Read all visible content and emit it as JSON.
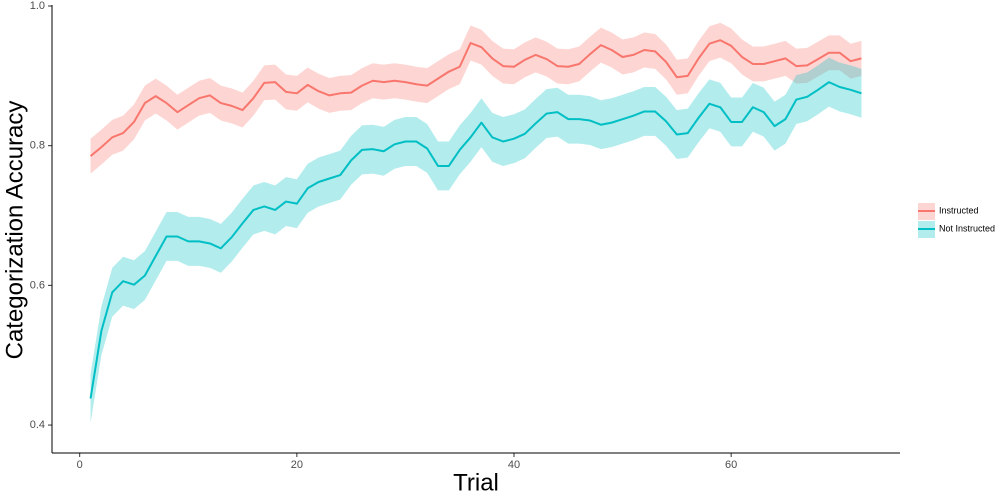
{
  "chart_data": {
    "type": "line",
    "xlabel": "Trial",
    "ylabel": "Categorization Accuracy",
    "x": [
      1,
      2,
      3,
      4,
      5,
      6,
      7,
      8,
      9,
      10,
      11,
      12,
      13,
      14,
      15,
      16,
      17,
      18,
      19,
      20,
      21,
      22,
      23,
      24,
      25,
      26,
      27,
      28,
      29,
      30,
      31,
      32,
      33,
      34,
      35,
      36,
      37,
      38,
      39,
      40,
      41,
      42,
      43,
      44,
      45,
      46,
      47,
      48,
      49,
      50,
      51,
      52,
      53,
      54,
      55,
      56,
      57,
      58,
      59,
      60,
      61,
      62,
      63,
      64,
      65,
      66,
      67,
      68,
      69,
      70,
      71,
      72
    ],
    "xlim": [
      -2.55,
      75.55
    ],
    "xticks": [
      0,
      20,
      40,
      60
    ],
    "ylim": [
      0.36,
      1.0
    ],
    "yticks": [
      0.4,
      0.6,
      0.8,
      {
        "value": 1.0,
        "label": "1.0"
      }
    ],
    "legend": "right",
    "grid": false,
    "series": [
      {
        "name": "Instructed",
        "color": "#F8766D",
        "ci": 0.025,
        "values": [
          0.785,
          0.798,
          0.812,
          0.818,
          0.834,
          0.861,
          0.871,
          0.861,
          0.848,
          0.858,
          0.868,
          0.872,
          0.861,
          0.857,
          0.851,
          0.868,
          0.89,
          0.891,
          0.877,
          0.875,
          0.887,
          0.878,
          0.872,
          0.875,
          0.876,
          0.886,
          0.893,
          0.891,
          0.893,
          0.891,
          0.888,
          0.886,
          0.896,
          0.906,
          0.913,
          0.947,
          0.941,
          0.925,
          0.914,
          0.913,
          0.923,
          0.93,
          0.924,
          0.914,
          0.913,
          0.917,
          0.931,
          0.944,
          0.937,
          0.927,
          0.93,
          0.937,
          0.935,
          0.92,
          0.898,
          0.9,
          0.925,
          0.946,
          0.951,
          0.943,
          0.927,
          0.917,
          0.917,
          0.921,
          0.925,
          0.914,
          0.915,
          0.924,
          0.933,
          0.933,
          0.921,
          0.925
        ]
      },
      {
        "name": "Not Instructed",
        "color": "#00BFC4",
        "ci": 0.035,
        "values": [
          0.438,
          0.535,
          0.59,
          0.606,
          0.601,
          0.614,
          0.642,
          0.67,
          0.67,
          0.663,
          0.663,
          0.66,
          0.653,
          0.669,
          0.689,
          0.708,
          0.713,
          0.708,
          0.72,
          0.717,
          0.739,
          0.748,
          0.753,
          0.758,
          0.779,
          0.794,
          0.795,
          0.792,
          0.802,
          0.806,
          0.806,
          0.796,
          0.771,
          0.771,
          0.794,
          0.812,
          0.833,
          0.812,
          0.806,
          0.81,
          0.817,
          0.832,
          0.846,
          0.848,
          0.838,
          0.838,
          0.836,
          0.83,
          0.833,
          0.838,
          0.843,
          0.849,
          0.849,
          0.835,
          0.816,
          0.818,
          0.84,
          0.86,
          0.855,
          0.834,
          0.834,
          0.855,
          0.848,
          0.828,
          0.838,
          0.866,
          0.87,
          0.88,
          0.891,
          0.884,
          0.88,
          0.875
        ]
      }
    ]
  }
}
